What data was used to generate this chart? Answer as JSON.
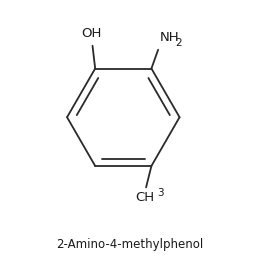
{
  "title": "2-Amino-4-methylphenol",
  "title_fontsize": 8.5,
  "bg_color": "#ffffff",
  "line_color": "#2a2a2a",
  "line_width": 1.3,
  "text_color": "#1a1a1a",
  "OH_label": "OH",
  "NH2_main": "NH",
  "NH2_sub": "2",
  "CH3_main": "CH",
  "CH3_sub": "3",
  "font_size_groups": 9.5,
  "font_size_sub": 7.5
}
